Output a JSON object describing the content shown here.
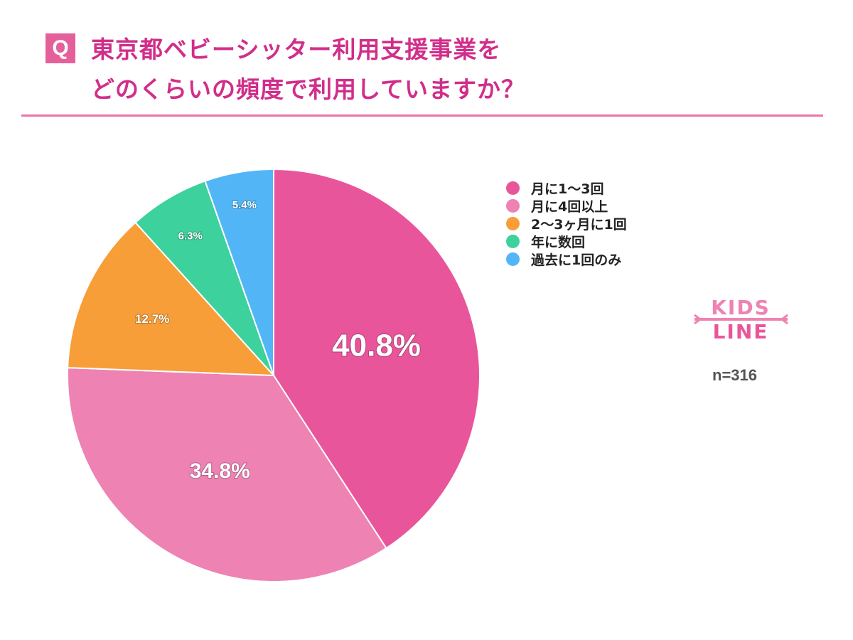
{
  "header": {
    "q_badge": "Q",
    "title_line1": "東京都ベビーシッター利用支援事業を",
    "title_line2": "どのくらいの頻度で利用していますか？"
  },
  "logo": {
    "text": "KIDS LINE"
  },
  "sample_size": "n=316",
  "chart_data": {
    "type": "pie",
    "title": "東京都ベビーシッター利用支援事業をどのくらいの頻度で利用していますか？",
    "categories": [
      "月に1〜3回",
      "月に4回以上",
      "2〜3ヶ月に1回",
      "年に数回",
      "過去に1回のみ"
    ],
    "values": [
      40.8,
      34.8,
      12.7,
      6.3,
      5.4
    ],
    "labels": [
      "40.8%",
      "34.8%",
      "12.7%",
      "6.3%",
      "5.4%"
    ],
    "colors": [
      "#E9559A",
      "#EE82B3",
      "#F79E38",
      "#3DD19E",
      "#52B6F6"
    ],
    "start": "top",
    "direction": "clockwise",
    "legend": "right"
  }
}
